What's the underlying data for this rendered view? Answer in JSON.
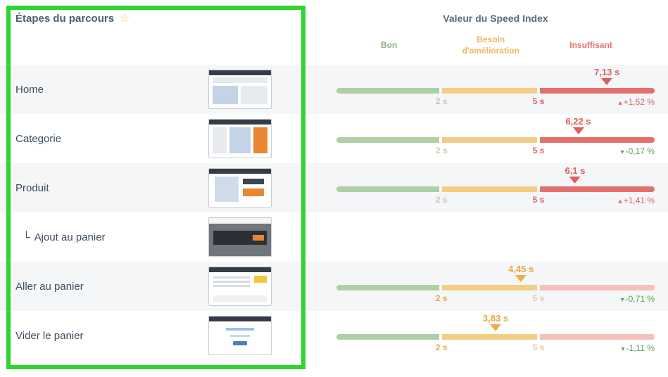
{
  "left_panel": {
    "title": "Étapes du parcours"
  },
  "right_panel": {
    "title": "Valeur du Speed Index",
    "zones": [
      {
        "label": "Bon",
        "color": "#8ab27d"
      },
      {
        "label": "Besoin d'amélioration",
        "color": "#eeb763"
      },
      {
        "label": "Insuffisant",
        "color": "#e57070"
      }
    ]
  },
  "scale": {
    "tick1": "2 s",
    "tick2": "5 s"
  },
  "colors": {
    "good_segment": "#aed0a4",
    "warn_segment": "#f3cd86",
    "bad_segment": "#e4706c",
    "bad_segment_faded": "#f3c1ba",
    "delta_up_red": "#dd5f5f",
    "delta_down_green": "#58a14e",
    "highlight_box": "#2ed52e",
    "star": "#f2c14e"
  },
  "rows": [
    {
      "label": "Home",
      "value": "7,13 s",
      "zone": "red",
      "pos": 85,
      "delta": "+1,52 %",
      "delta_arrow": "▴",
      "delta_color": "red"
    },
    {
      "label": "Categorie",
      "value": "6,22 s",
      "zone": "red",
      "pos": 76,
      "delta": "-0,17 %",
      "delta_arrow": "▾",
      "delta_color": "green"
    },
    {
      "label": "Produit",
      "value": "6,1 s",
      "zone": "red",
      "pos": 75,
      "delta": "+1,41 %",
      "delta_arrow": "▴",
      "delta_color": "red"
    },
    {
      "prefix": "└",
      "label": "Ajout au panier",
      "value": "",
      "zone": "none",
      "pos": null,
      "delta": "",
      "delta_arrow": "",
      "delta_color": ""
    },
    {
      "label": "Aller au panier",
      "value": "4,45 s",
      "zone": "orange",
      "pos": 58,
      "delta": "-0,71 %",
      "delta_arrow": "▾",
      "delta_color": "green"
    },
    {
      "label": "Vider le panier",
      "value": "3,83 s",
      "zone": "orange",
      "pos": 50,
      "delta": "-1,11 %",
      "delta_arrow": "▾",
      "delta_color": "green"
    }
  ]
}
